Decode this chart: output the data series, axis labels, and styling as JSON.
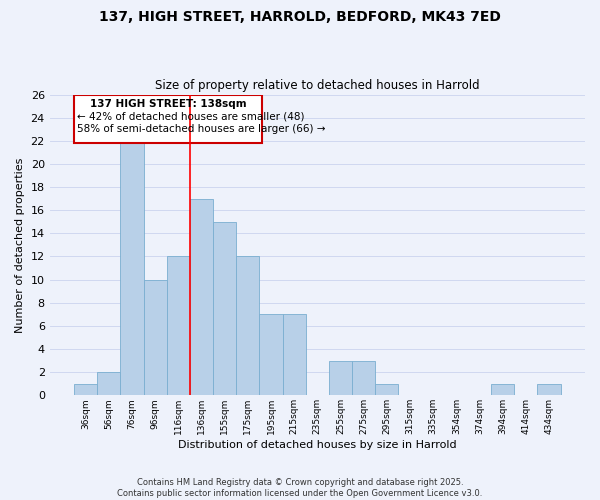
{
  "title_line1": "137, HIGH STREET, HARROLD, BEDFORD, MK43 7ED",
  "title_line2": "Size of property relative to detached houses in Harrold",
  "xlabel": "Distribution of detached houses by size in Harrold",
  "ylabel": "Number of detached properties",
  "bar_color": "#b8d0e8",
  "bar_edge_color": "#7aaed0",
  "categories": [
    "36sqm",
    "56sqm",
    "76sqm",
    "96sqm",
    "116sqm",
    "136sqm",
    "155sqm",
    "175sqm",
    "195sqm",
    "215sqm",
    "235sqm",
    "255sqm",
    "275sqm",
    "295sqm",
    "315sqm",
    "335sqm",
    "354sqm",
    "374sqm",
    "394sqm",
    "414sqm",
    "434sqm"
  ],
  "values": [
    1,
    2,
    22,
    10,
    12,
    17,
    15,
    12,
    7,
    7,
    0,
    3,
    3,
    1,
    0,
    0,
    0,
    0,
    1,
    0,
    1
  ],
  "ylim": [
    0,
    26
  ],
  "yticks": [
    0,
    2,
    4,
    6,
    8,
    10,
    12,
    14,
    16,
    18,
    20,
    22,
    24,
    26
  ],
  "property_label": "137 HIGH STREET: 138sqm",
  "annotation_line1": "← 42% of detached houses are smaller (48)",
  "annotation_line2": "58% of semi-detached houses are larger (66) →",
  "vline_bar_index": 5,
  "background_color": "#eef2fb",
  "grid_color": "#d0d8f0",
  "annot_box_color": "#cc0000",
  "footer_line1": "Contains HM Land Registry data © Crown copyright and database right 2025.",
  "footer_line2": "Contains public sector information licensed under the Open Government Licence v3.0."
}
